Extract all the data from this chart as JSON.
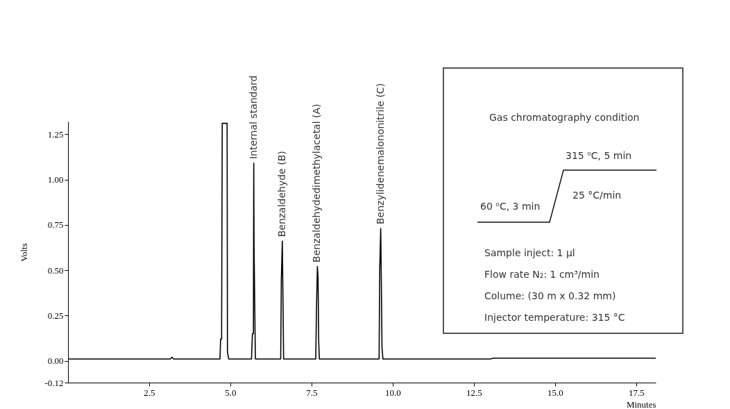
{
  "chart_data": {
    "type": "line",
    "xlabel": "Minutes",
    "ylabel": "Volts",
    "x": [
      0,
      3.15,
      3.2,
      3.25,
      4.68,
      4.7,
      4.73,
      4.75,
      4.9,
      4.91,
      4.95,
      5.65,
      5.68,
      5.71,
      5.72,
      5.73,
      5.75,
      5.77,
      6.55,
      6.57,
      6.6,
      6.62,
      6.64,
      7.63,
      7.65,
      7.68,
      7.7,
      7.72,
      7.74,
      9.58,
      9.6,
      9.63,
      9.65,
      9.67,
      9.7,
      13.0,
      13.1,
      18.1
    ],
    "series": [
      {
        "color": "#000000",
        "values": [
          0.01,
          0.01,
          0.02,
          0.01,
          0.01,
          0.12,
          0.12,
          1.31,
          1.31,
          0.05,
          0.01,
          0.01,
          0.15,
          0.15,
          1.09,
          0.63,
          0.32,
          0.01,
          0.01,
          0.45,
          0.66,
          0.34,
          0.01,
          0.01,
          0.27,
          0.52,
          0.46,
          0.11,
          0.01,
          0.01,
          0.51,
          0.73,
          0.43,
          0.07,
          0.01,
          0.01,
          0.015,
          0.015
        ]
      }
    ],
    "xlim": [
      0,
      18.1
    ],
    "ylim": [
      -0.12,
      1.32
    ],
    "xticks": [
      2.5,
      {
        "value": 5,
        "label": "5.0"
      },
      7.5,
      {
        "value": 10,
        "label": "10.0"
      },
      12.5,
      {
        "value": 15,
        "label": "15.0"
      },
      17.5
    ],
    "yticks": [
      {
        "value": -0.12,
        "label": "-0.12"
      },
      {
        "value": 0,
        "label": "0.00"
      },
      {
        "value": 0.25,
        "label": "0.25"
      },
      {
        "value": 0.5,
        "label": "0.50"
      },
      {
        "value": 0.75,
        "label": "0.75"
      },
      {
        "value": 1,
        "label": "1.00"
      },
      {
        "value": 1.25,
        "label": "1.25"
      }
    ],
    "annotations": [
      {
        "text": "Internal standard",
        "x": 5.72,
        "y": 1.09
      },
      {
        "text": "Benzaldehyde (B)",
        "x": 6.6,
        "y": 0.66
      },
      {
        "text": "Benzaldehydedimethylacetal (A)",
        "x": 7.68,
        "y": 0.52
      },
      {
        "text": "Benzylidenemalononitrile (C)",
        "x": 9.63,
        "y": 0.73
      },
      "Gas chromatography condition",
      "315 ⁰C, 5 min",
      "25 °C/min",
      "60 ⁰C, 3 min",
      "Sample inject: 1 µl",
      "Flow rate N₂: 1 cm³/min",
      "Colume: (30 m x 0.32 mm)",
      "Injector temperature: 315 °C"
    ]
  }
}
